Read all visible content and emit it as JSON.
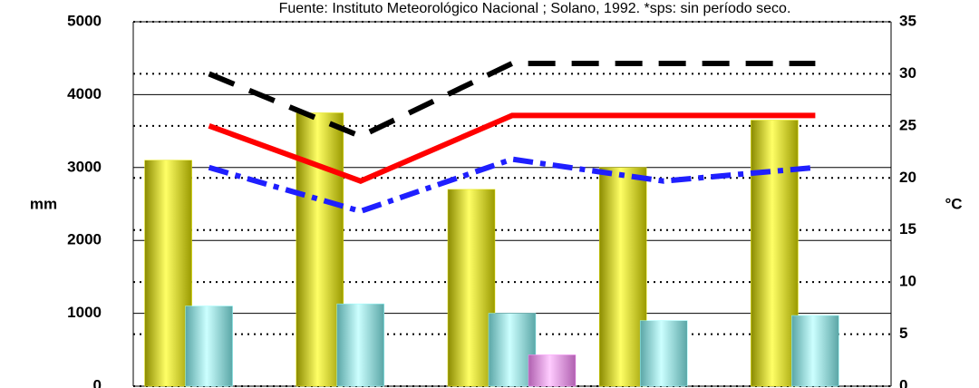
{
  "chart_data": {
    "type": "bar",
    "title": "Fuente: Instituto Meteorológico Nacional ; Solano, 1992. *sps: sin período seco.",
    "y_label": "mm",
    "y2_label": "°C",
    "categories": [
      null,
      null,
      null,
      null,
      null
    ],
    "ylim": [
      0,
      5000
    ],
    "yticks": [
      0,
      1000,
      2000,
      3000,
      4000,
      5000
    ],
    "y2lim": [
      0,
      35
    ],
    "y2ticks": [
      0,
      5,
      10,
      15,
      20,
      25,
      30,
      35
    ],
    "grid": true,
    "series": [
      {
        "type": "bar",
        "color": "#e6e600",
        "values": [
          3100,
          3750,
          2700,
          3000,
          3650
        ]
      },
      {
        "type": "bar",
        "color": "#99ffff",
        "values": [
          1100,
          1130,
          1000,
          900,
          970
        ]
      },
      {
        "type": "bar",
        "color": "#ff99ff",
        "values": [
          null,
          null,
          430,
          null,
          null
        ]
      },
      {
        "type": "line",
        "axis": "y2",
        "color": "#000000",
        "dash": "30,18",
        "values": [
          30,
          24,
          31,
          31,
          31
        ]
      },
      {
        "type": "line",
        "axis": "y2",
        "color": "#ff0000",
        "dash": "none",
        "values": [
          25,
          19.7,
          26,
          26,
          26
        ]
      },
      {
        "type": "line",
        "axis": "y2",
        "color": "#1f1fff",
        "dash": "22,8,6,8",
        "values": [
          21,
          16.8,
          21.8,
          19.7,
          21
        ]
      }
    ]
  }
}
